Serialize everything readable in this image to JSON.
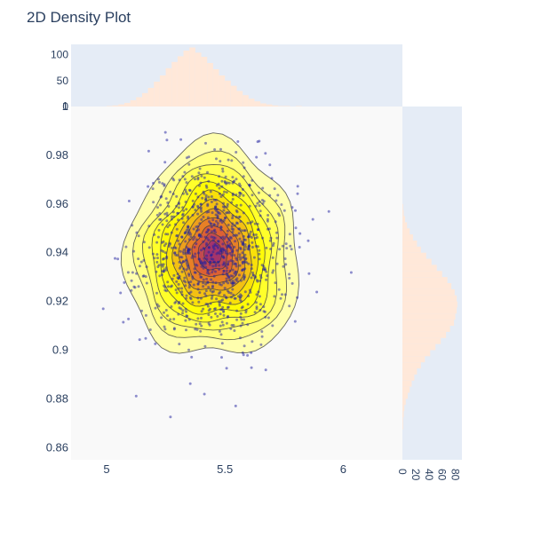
{
  "chart_data": {
    "type": "scatter",
    "title": "2D Density Plot",
    "xlabel": "",
    "ylabel": "",
    "xlim": [
      4.85,
      6.25
    ],
    "ylim": [
      0.855,
      1.0
    ],
    "x_ticks": [
      "5",
      "5.5",
      "6"
    ],
    "x_tick_values": [
      5,
      5.5,
      6
    ],
    "y_ticks": [
      "0.86",
      "0.88",
      "0.9",
      "0.92",
      "0.94",
      "0.96",
      "0.98",
      "1"
    ],
    "y_tick_values": [
      0.86,
      0.88,
      0.9,
      0.92,
      0.94,
      0.96,
      0.98,
      1.0
    ],
    "top_hist_ticks": [
      "0",
      "50",
      "100"
    ],
    "top_hist_tick_values": [
      0,
      50,
      100
    ],
    "top_hist_max": 120,
    "right_hist_ticks": [
      "0",
      "20",
      "40",
      "60",
      "80"
    ],
    "right_hist_tick_values": [
      0,
      20,
      40,
      60,
      80
    ],
    "right_hist_max": 90,
    "top_hist": {
      "bins_start": 5.0,
      "bin_width": 0.025,
      "counts": [
        1,
        2,
        4,
        7,
        12,
        18,
        26,
        36,
        48,
        60,
        74,
        86,
        97,
        108,
        114,
        104,
        96,
        84,
        72,
        60,
        50,
        40,
        30,
        22,
        15,
        10,
        6,
        4,
        2,
        1,
        1,
        0,
        1
      ]
    },
    "right_hist": {
      "bins_start": 0.86,
      "bin_width": 0.0025,
      "counts": [
        0,
        0,
        0,
        1,
        1,
        2,
        3,
        5,
        8,
        11,
        14,
        18,
        22,
        28,
        34,
        42,
        50,
        58,
        66,
        72,
        78,
        80,
        82,
        83,
        82,
        79,
        74,
        68,
        60,
        52,
        44,
        36,
        28,
        22,
        16,
        11,
        7,
        4,
        2,
        1,
        0
      ]
    },
    "density_center": [
      5.45,
      0.94
    ],
    "density_spread": [
      0.15,
      0.018
    ],
    "contour_levels": 12,
    "points": {
      "count": 1000,
      "color": "#1f1fa0"
    },
    "colors": {
      "plot_bg": "#f9f9f9",
      "marginal_bg": "#e5ecf6",
      "hist_fill": "#ffe8d9",
      "contour_low": "#ffffa0",
      "contour_mid": "#ffff00",
      "contour_high": "#e06030",
      "contour_peak": "#a03070",
      "contour_line": "#404040",
      "text": "#2a3f5f"
    }
  }
}
